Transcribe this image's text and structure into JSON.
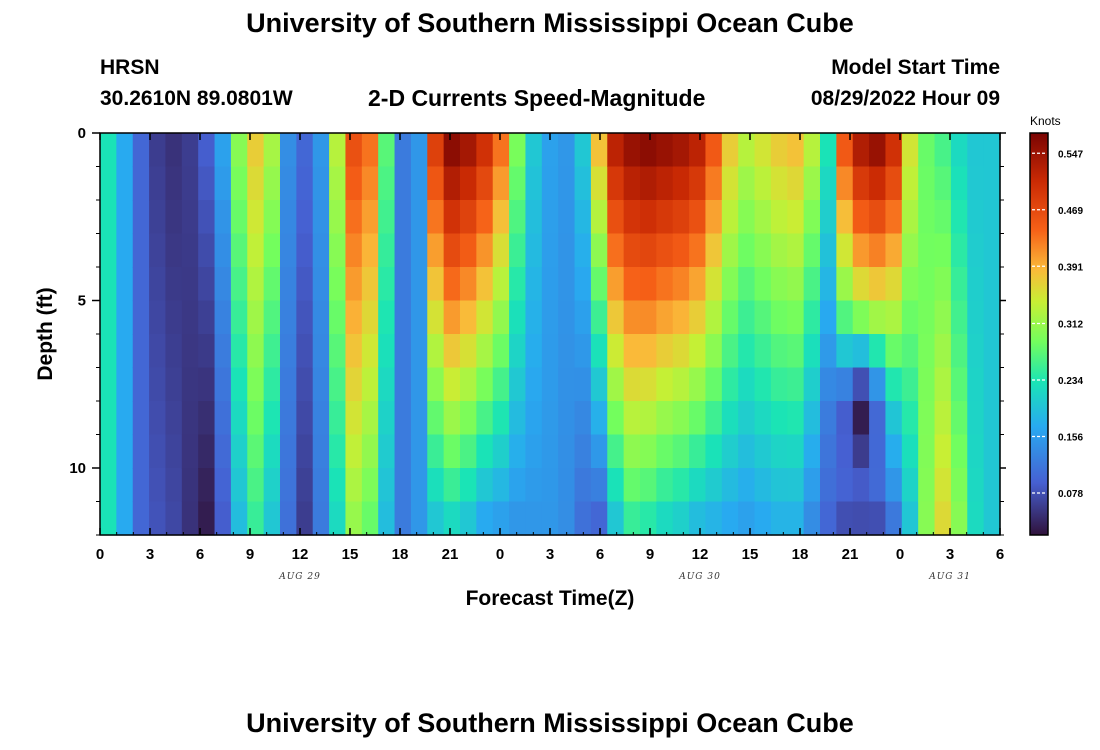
{
  "header": {
    "title": "University of Southern Mississippi Ocean Cube",
    "station": "HRSN",
    "coords": "30.2610N  89.0801W",
    "subtitle": "2-D Currents Speed-Magnitude",
    "model_start_label": "Model Start Time",
    "model_start_value": "08/29/2022 Hour 09"
  },
  "footer": {
    "title": "University of Southern Mississippi Ocean Cube"
  },
  "chart_data": {
    "type": "heatmap",
    "title": "2-D Currents Speed-Magnitude",
    "xlabel": "Forecast Time(Z)",
    "ylabel": "Depth (ft)",
    "x_range_hours": [
      0,
      54
    ],
    "y_range_ft": [
      0,
      12
    ],
    "x_ticks": [
      {
        "h": 0,
        "label": "0"
      },
      {
        "h": 3,
        "label": "3"
      },
      {
        "h": 6,
        "label": "6"
      },
      {
        "h": 9,
        "label": "9"
      },
      {
        "h": 12,
        "label": "12"
      },
      {
        "h": 15,
        "label": "15"
      },
      {
        "h": 18,
        "label": "18"
      },
      {
        "h": 21,
        "label": "21"
      },
      {
        "h": 24,
        "label": "0"
      },
      {
        "h": 27,
        "label": "3"
      },
      {
        "h": 30,
        "label": "6"
      },
      {
        "h": 33,
        "label": "9"
      },
      {
        "h": 36,
        "label": "12"
      },
      {
        "h": 39,
        "label": "15"
      },
      {
        "h": 42,
        "label": "18"
      },
      {
        "h": 45,
        "label": "21"
      },
      {
        "h": 48,
        "label": "0"
      },
      {
        "h": 51,
        "label": "3"
      },
      {
        "h": 54,
        "label": "6"
      }
    ],
    "date_labels": [
      {
        "h": 12,
        "label": "AUG 29"
      },
      {
        "h": 36,
        "label": "AUG 30"
      },
      {
        "h": 51,
        "label": "AUG 31"
      }
    ],
    "y_ticks": [
      {
        "ft": 0,
        "label": "0"
      },
      {
        "ft": 5,
        "label": "5"
      },
      {
        "ft": 10,
        "label": "10"
      }
    ],
    "colorbar": {
      "unit": "Knots",
      "min": 0.02,
      "max": 0.575,
      "ticks": [
        "0.547",
        "0.469",
        "0.391",
        "0.312",
        "0.234",
        "0.156",
        "0.078"
      ],
      "tick_values": [
        0.547,
        0.469,
        0.391,
        0.312,
        0.234,
        0.156,
        0.078
      ]
    },
    "depth_levels": 12,
    "time_steps": 55,
    "column_profiles": [
      {
        "h": 0,
        "top": 0.23,
        "bot": 0.23
      },
      {
        "h": 1,
        "top": 0.17,
        "bot": 0.17
      },
      {
        "h": 2,
        "top": 0.1,
        "bot": 0.1
      },
      {
        "h": 3,
        "top": 0.06,
        "bot": 0.08
      },
      {
        "h": 4,
        "top": 0.05,
        "bot": 0.07
      },
      {
        "h": 5,
        "top": 0.06,
        "bot": 0.05
      },
      {
        "h": 6,
        "top": 0.09,
        "bot": 0.03
      },
      {
        "h": 7,
        "top": 0.16,
        "bot": 0.09
      },
      {
        "h": 8,
        "top": 0.3,
        "bot": 0.19
      },
      {
        "h": 9,
        "top": 0.37,
        "bot": 0.25
      },
      {
        "h": 10,
        "top": 0.32,
        "bot": 0.2
      },
      {
        "h": 11,
        "top": 0.14,
        "bot": 0.11
      },
      {
        "h": 12,
        "top": 0.1,
        "bot": 0.06
      },
      {
        "h": 13,
        "top": 0.15,
        "bot": 0.12
      },
      {
        "h": 14,
        "top": 0.33,
        "bot": 0.22
      },
      {
        "h": 15,
        "top": 0.46,
        "bot": 0.31
      },
      {
        "h": 16,
        "top": 0.43,
        "bot": 0.28
      },
      {
        "h": 17,
        "top": 0.27,
        "bot": 0.19
      },
      {
        "h": 18,
        "top": 0.12,
        "bot": 0.12
      },
      {
        "h": 19,
        "top": 0.15,
        "bot": 0.15
      },
      {
        "h": 20,
        "top": 0.48,
        "bot": 0.2
      },
      {
        "h": 21,
        "top": 0.56,
        "bot": 0.22
      },
      {
        "h": 22,
        "top": 0.54,
        "bot": 0.2
      },
      {
        "h": 23,
        "top": 0.5,
        "bot": 0.17
      },
      {
        "h": 24,
        "top": 0.43,
        "bot": 0.16
      },
      {
        "h": 25,
        "top": 0.29,
        "bot": 0.15
      },
      {
        "h": 26,
        "top": 0.2,
        "bot": 0.15
      },
      {
        "h": 27,
        "top": 0.16,
        "bot": 0.15
      },
      {
        "h": 28,
        "top": 0.15,
        "bot": 0.14
      },
      {
        "h": 29,
        "top": 0.2,
        "bot": 0.11
      },
      {
        "h": 30,
        "top": 0.38,
        "bot": 0.1
      },
      {
        "h": 31,
        "top": 0.52,
        "bot": 0.2
      },
      {
        "h": 32,
        "top": 0.55,
        "bot": 0.25
      },
      {
        "h": 33,
        "top": 0.56,
        "bot": 0.24
      },
      {
        "h": 34,
        "top": 0.55,
        "bot": 0.22
      },
      {
        "h": 35,
        "top": 0.54,
        "bot": 0.21
      },
      {
        "h": 36,
        "top": 0.52,
        "bot": 0.19
      },
      {
        "h": 37,
        "top": 0.45,
        "bot": 0.18
      },
      {
        "h": 38,
        "top": 0.37,
        "bot": 0.17
      },
      {
        "h": 39,
        "top": 0.33,
        "bot": 0.16
      },
      {
        "h": 40,
        "top": 0.35,
        "bot": 0.17
      },
      {
        "h": 41,
        "top": 0.37,
        "bot": 0.18
      },
      {
        "h": 42,
        "top": 0.38,
        "bot": 0.18
      },
      {
        "h": 43,
        "top": 0.33,
        "bot": 0.14
      },
      {
        "h": 44,
        "top": 0.23,
        "bot": 0.1
      },
      {
        "h": 45,
        "top": 0.45,
        "bot": 0.08
      },
      {
        "h": 46,
        "top": 0.53,
        "bot": 0.08
      },
      {
        "h": 47,
        "top": 0.55,
        "bot": 0.08
      },
      {
        "h": 48,
        "top": 0.5,
        "bot": 0.12
      },
      {
        "h": 49,
        "top": 0.35,
        "bot": 0.2
      },
      {
        "h": 50,
        "top": 0.28,
        "bot": 0.3
      },
      {
        "h": 51,
        "top": 0.26,
        "bot": 0.36
      },
      {
        "h": 52,
        "top": 0.22,
        "bot": 0.3
      },
      {
        "h": 53,
        "top": 0.2,
        "bot": 0.22
      },
      {
        "h": 54,
        "top": 0.2,
        "bot": 0.2
      }
    ],
    "features": [
      {
        "name": "slow-core",
        "h": 46,
        "depth_ft": 8,
        "value": 0.03
      }
    ]
  }
}
